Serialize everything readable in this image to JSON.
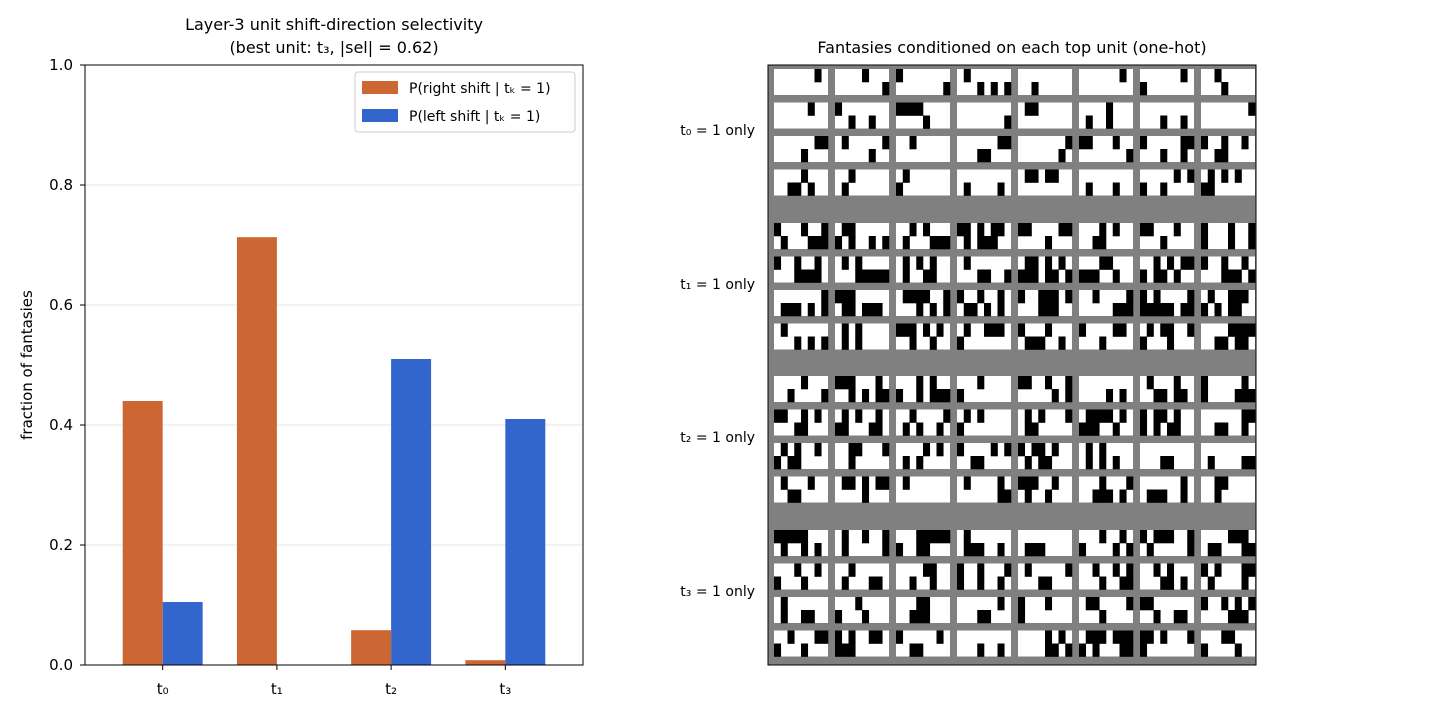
{
  "chart_data": [
    {
      "type": "bar",
      "title": "Layer-3 unit shift-direction selectivity",
      "subtitle": "(best unit: t₃, |sel| = 0.62)",
      "xlabel": "",
      "ylabel": "fraction of fantasies",
      "ylim": [
        0,
        1.0
      ],
      "yticks": [
        "0.0",
        "0.2",
        "0.4",
        "0.6",
        "0.8",
        "1.0"
      ],
      "categories": [
        "t₀",
        "t₁",
        "t₂",
        "t₃"
      ],
      "series": [
        {
          "name": "P(right shift | tₖ = 1)",
          "color": "#cc6633",
          "values": [
            0.44,
            0.713,
            0.058,
            0.008
          ]
        },
        {
          "name": "P(left shift | tₖ = 1)",
          "color": "#3366cc",
          "values": [
            0.105,
            0.0,
            0.51,
            0.41
          ]
        }
      ],
      "grid": "horizontal",
      "legend_position": "top-right"
    },
    {
      "type": "heatmap",
      "title": "Fantasies conditioned on each top unit (one-hot)",
      "row_groups": [
        "t₀ = 1 only",
        "t₁ = 1 only",
        "t₂ = 1 only",
        "t₃ = 1 only"
      ],
      "description": "4 groups x 4 rows x 8 columns of binary fantasy patterns (black/white) on a grey background"
    }
  ]
}
